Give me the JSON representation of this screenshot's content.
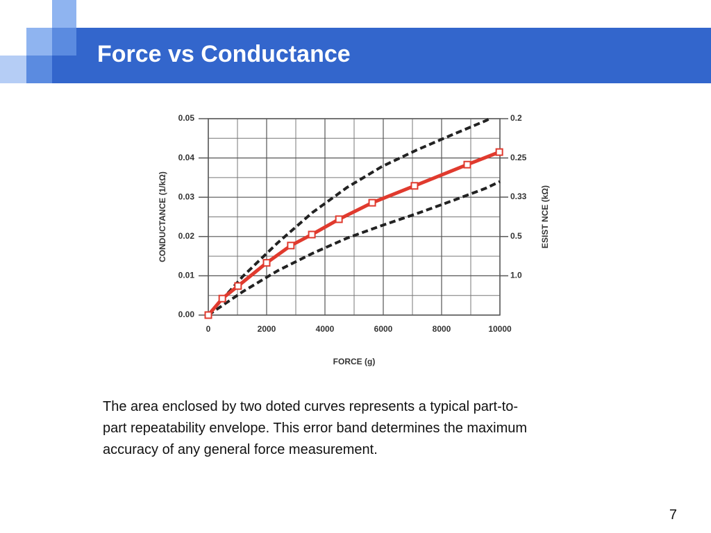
{
  "slide": {
    "title": "Force vs Conductance",
    "page_number": "7"
  },
  "body": {
    "lines": [
      "The area enclosed by two doted curves represents a typical part-to-",
      "part repeatability envelope.  This error band determines the maximum",
      "accuracy of any general force measurement."
    ]
  },
  "chart_data": {
    "type": "line",
    "xlabel": "FORCE (g)",
    "ylabel": "CONDUCTANCE (1/kΩ)",
    "y2label": "ESIST  NCE (kΩ)",
    "xlim": [
      0,
      10000
    ],
    "xticks": [
      0,
      2000,
      4000,
      6000,
      8000,
      10000
    ],
    "xminorticks": [
      1000,
      3000,
      5000,
      7000,
      9000
    ],
    "ylim": [
      0,
      0.05
    ],
    "yticks": [
      {
        "value": 0,
        "label": "0.00"
      },
      0.01,
      0.02,
      0.03,
      0.04,
      0.05
    ],
    "yminorticks": [
      0.005,
      0.015,
      0.025,
      0.035,
      0.045
    ],
    "y2scale": "reciprocal",
    "y2lim": [
      null,
      0.2
    ],
    "y2ticks": [
      {
        "value": 1,
        "label": "1.0"
      },
      0.5,
      {
        "value": 0.333,
        "label": "0.33"
      },
      0.25,
      0.2
    ],
    "grid": true,
    "series": [
      {
        "color": "#e03a2e",
        "marker": "square",
        "dash": false,
        "x": [
          0,
          480,
          1020,
          2000,
          2830,
          3550,
          4480,
          5620,
          7070,
          8880,
          9980
        ],
        "values": [
          0,
          0.0042,
          0.0074,
          0.0133,
          0.0177,
          0.0205,
          0.0244,
          0.0286,
          0.0329,
          0.0383,
          0.0415
        ]
      },
      {
        "color": "#222222",
        "dash": true,
        "x": [
          0,
          1190,
          2380,
          3570,
          4760,
          5950,
          7140,
          8330,
          9520,
          9640
        ],
        "values": [
          0,
          0.0099,
          0.0184,
          0.0261,
          0.0325,
          0.0378,
          0.042,
          0.0458,
          0.0495,
          0.05
        ]
      },
      {
        "color": "#222222",
        "dash": true,
        "x": [
          0,
          1190,
          2380,
          3570,
          4760,
          5950,
          7140,
          8330,
          9520,
          10000
        ],
        "values": [
          0,
          0.006,
          0.0113,
          0.0157,
          0.0196,
          0.0228,
          0.0258,
          0.029,
          0.0323,
          0.034
        ]
      }
    ]
  }
}
